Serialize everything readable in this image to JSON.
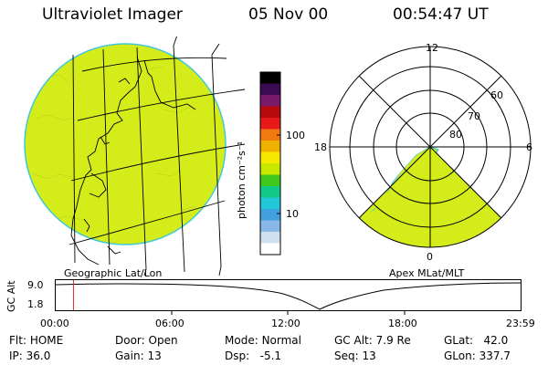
{
  "header": {
    "instrument": "Ultraviolet Imager",
    "date": "05 Nov 00",
    "time": "00:54:47 UT"
  },
  "colors": {
    "aurora_fill": "#d4ec1a",
    "limb": "#40c8d8",
    "timeline_marker": "#e02020"
  },
  "left_panel": {
    "caption": "Geographic Lat/Lon"
  },
  "right_panel": {
    "caption": "Apex MLat/MLT",
    "mlt_labels": {
      "top": "12",
      "left": "18",
      "right": "6",
      "bottom": "0"
    },
    "lat_labels": [
      "60",
      "70",
      "80"
    ]
  },
  "colorbar": {
    "unit_label": "photon cm⁻²s⁻¹",
    "tick_100": "100",
    "tick_10": "10",
    "colors_top_to_bottom": [
      "#000000",
      "#3a0a52",
      "#7a1a6a",
      "#b80a0a",
      "#e81818",
      "#f07a10",
      "#f0b000",
      "#f8e800",
      "#c8e800",
      "#40c820",
      "#10c888",
      "#20c8d8",
      "#40a0e0",
      "#88b8e8",
      "#d0e0f0",
      "#ffffff"
    ]
  },
  "timeline": {
    "axis_label": "GC Alt",
    "y_ticks": [
      "9.0",
      "1.8"
    ],
    "x_ticks": [
      "00:00",
      "06:00",
      "12:00",
      "18:00",
      "23:59"
    ],
    "marker_time_hours": 0.913
  },
  "info": {
    "col1": [
      {
        "label": "Flt:",
        "value": "HOME"
      },
      {
        "label": "IP:",
        "value": "36.0"
      }
    ],
    "col2": [
      {
        "label": "Door:",
        "value": "Open"
      },
      {
        "label": "Gain:",
        "value": "13"
      }
    ],
    "col3": [
      {
        "label": "Mode:",
        "value": "Normal"
      },
      {
        "label": "Dsp:",
        "value": "-5.1"
      }
    ],
    "col4": [
      {
        "label": "GC Alt:",
        "value": "7.9 Re"
      },
      {
        "label": "Seq:",
        "value": "13"
      }
    ],
    "col5": [
      {
        "label": "GLat:",
        "value": "42.0"
      },
      {
        "label": "GLon:",
        "value": "337.7"
      }
    ]
  }
}
